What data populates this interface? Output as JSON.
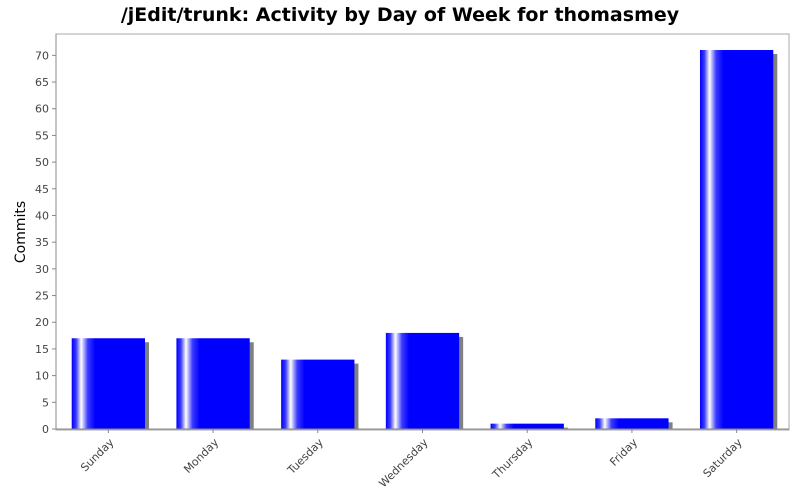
{
  "chart_data": {
    "type": "bar",
    "title": "/jEdit/trunk: Activity by Day of Week for thomasmey",
    "xlabel": "",
    "ylabel": "Commits",
    "categories": [
      "Sunday",
      "Monday",
      "Tuesday",
      "Wednesday",
      "Thursday",
      "Friday",
      "Saturday"
    ],
    "values": [
      17,
      17,
      13,
      18,
      1,
      2,
      71
    ],
    "ylim": [
      0,
      74
    ],
    "yticks": [
      0,
      5,
      10,
      15,
      20,
      25,
      30,
      35,
      40,
      45,
      50,
      55,
      60,
      65,
      70
    ],
    "grid": false,
    "legend": "none",
    "colors": {
      "bar": "#0000ff",
      "bar_highlight": "#ffffff",
      "shadow": "#808080",
      "axis": "#888888",
      "plot_border": "#aaaaaa"
    }
  }
}
